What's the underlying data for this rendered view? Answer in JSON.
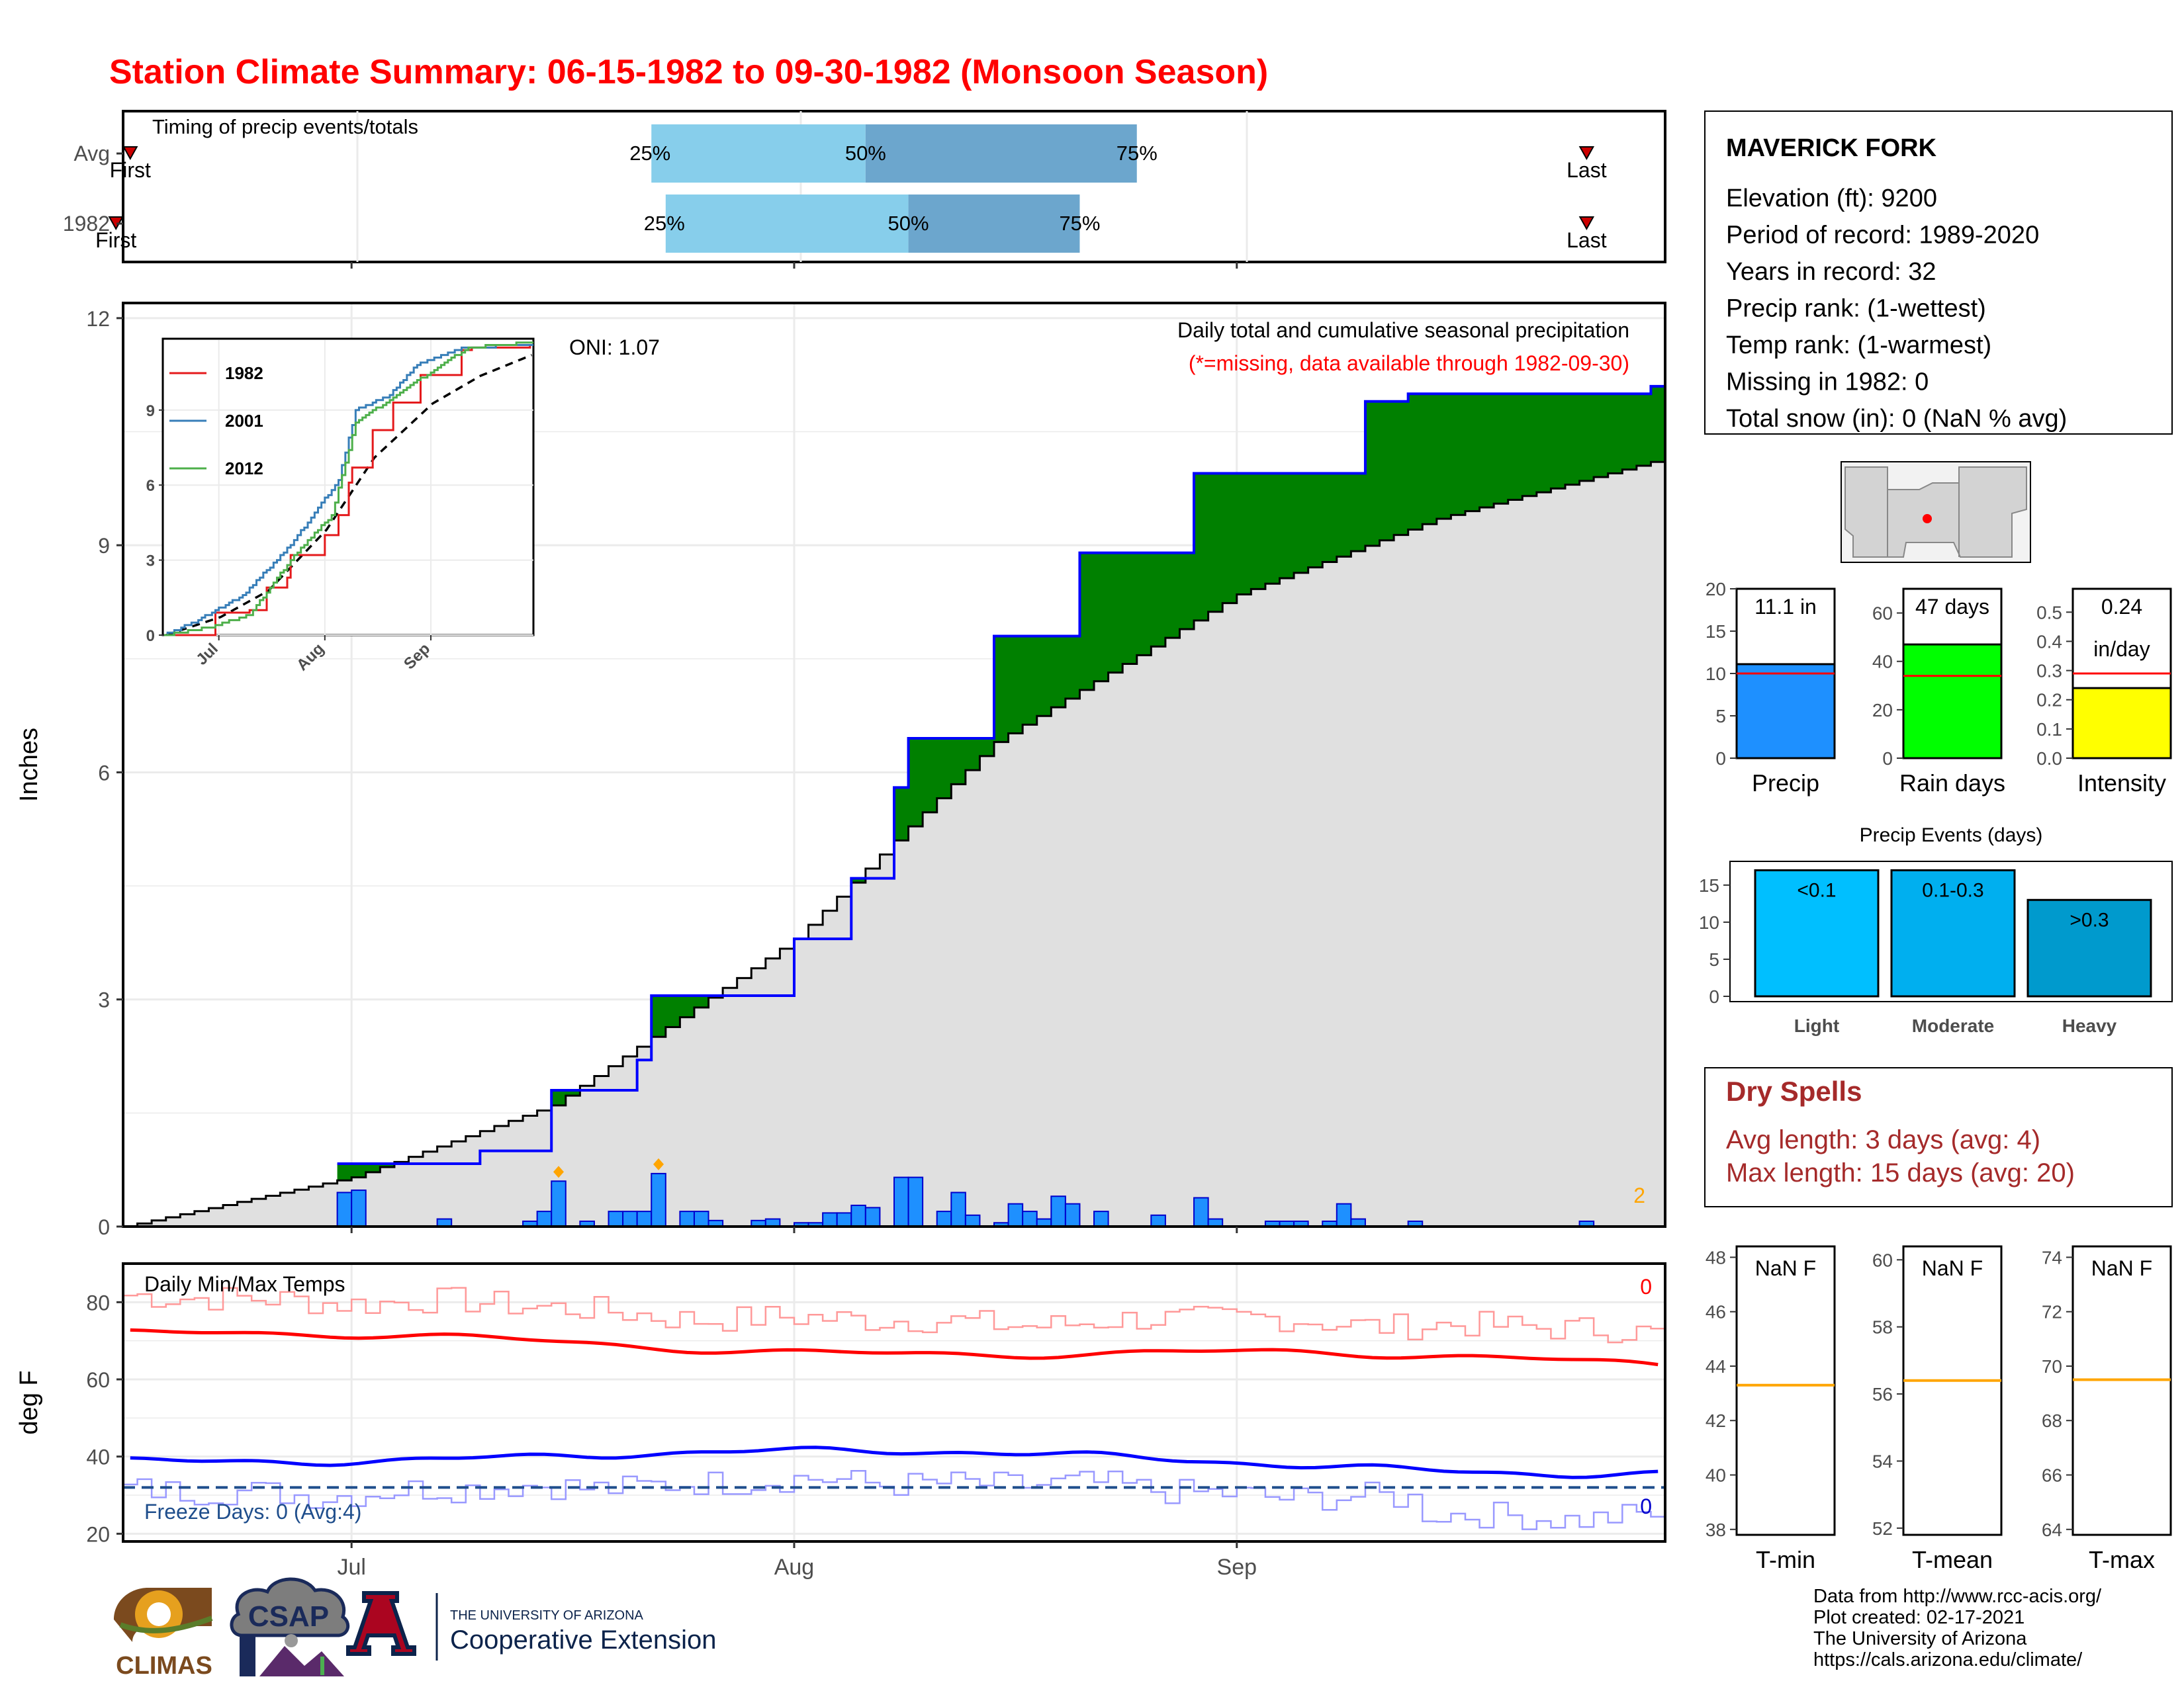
{
  "title": "Station Climate Summary: 06-15-1982 to 09-30-1982 (Monsoon Season)",
  "colors": {
    "title": "#ff0000",
    "above_avg": "#008000",
    "below_avg": "#7f5000",
    "cumulative_line": "#0000ff",
    "avg_fill": "#e0e0e0",
    "daily_bar": "#1e90ff",
    "marker": "#ffa500",
    "tmax": "#ff0000",
    "tmin": "#0000ff",
    "freeze_line": "#1f4e8c",
    "dry_spell_text": "#a52a2a",
    "timing_light": "#87ceeb",
    "timing_dark": "#6ca6cd",
    "precip_bar": "#1e90ff",
    "raindays_bar": "#00ff00",
    "intensity_bar": "#ffff00",
    "light_bar": "#00bfff",
    "moderate_bar": "#00afef",
    "heavy_bar": "#009acd"
  },
  "timing": {
    "label": "Timing of precip events/totals",
    "rows": [
      {
        "name": "Avg",
        "first": "06-15",
        "q25": "07-22",
        "q50": "08-06",
        "q75": "08-25",
        "last": "09-25"
      },
      {
        "name": "1982",
        "first": "06-14",
        "q25": "07-23",
        "q50": "08-09",
        "q75": "08-21",
        "last": "09-25"
      }
    ],
    "first_label": "First",
    "last_label": "Last",
    "p25": "25%",
    "p50": "50%",
    "p75": "75%"
  },
  "precip_panel": {
    "ylabel": "Inches",
    "note1": "Daily total and cumulative seasonal precipitation",
    "note2": "(*=missing, data available through 1982-09-30)",
    "oni": "ONI: 1.07",
    "corner_count": "2",
    "yticks": [
      "0",
      "3",
      "6",
      "9",
      "12"
    ],
    "xticks": [
      "Jul",
      "Aug",
      "Sep"
    ]
  },
  "inset": {
    "series": [
      {
        "name": "1982",
        "color": "#e41a1c"
      },
      {
        "name": "2001",
        "color": "#377eb8"
      },
      {
        "name": "2012",
        "color": "#4daf4a"
      }
    ],
    "yticks": [
      "0",
      "3",
      "6",
      "9"
    ],
    "xticks": [
      "Jul",
      "Aug",
      "Sep"
    ]
  },
  "temp_panel": {
    "ylabel": "deg F",
    "label": "Daily Min/Max Temps",
    "freeze_text": "Freeze Days: 0 (Avg:4)",
    "max_count": "0",
    "min_count": "0",
    "yticks": [
      "20",
      "40",
      "60",
      "80"
    ],
    "freeze_threshold": 32
  },
  "station": {
    "name": "MAVERICK FORK",
    "lines": [
      "Elevation (ft): 9200",
      "Period of record: 1989-2020",
      "Years in record: 32",
      "Precip rank:  (1-wettest)",
      "Temp rank:  (1-warmest)",
      "Missing in 1982: 0",
      "Total snow (in): 0 (NaN % avg)"
    ]
  },
  "summary_bars": [
    {
      "label": "Precip",
      "value_text": "11.1 in",
      "value": 11.1,
      "avg": 10.0,
      "yticks": [
        "0",
        "5",
        "10",
        "15",
        "20"
      ],
      "ymax": 20
    },
    {
      "label": "Rain days",
      "value_text": "47 days",
      "value": 47,
      "avg": 34,
      "yticks": [
        "0",
        "20",
        "40",
        "60"
      ],
      "ymax": 70
    },
    {
      "label": "Intensity",
      "value_text": "0.24",
      "value_text2": "in/day",
      "value": 0.24,
      "avg": 0.29,
      "yticks": [
        "0.0",
        "0.1",
        "0.2",
        "0.3",
        "0.4",
        "0.5"
      ],
      "ymax": 0.58
    }
  ],
  "events": {
    "title": "Precip Events (days)",
    "yticks": [
      "0",
      "5",
      "10",
      "15"
    ],
    "bars": [
      {
        "label": "Light",
        "range": "<0.1",
        "value": 17
      },
      {
        "label": "Moderate",
        "range": "0.1-0.3",
        "value": 17
      },
      {
        "label": "Heavy",
        "range": ">0.3",
        "value": 13
      }
    ]
  },
  "dry_spells": {
    "title": "Dry Spells",
    "avg_line": "Avg length: 3 days (avg: 4)",
    "max_line": "Max length: 15 days (avg: 20)"
  },
  "temp_boxes": [
    {
      "label": "T-min",
      "value": "NaN F",
      "yticks": [
        "38",
        "40",
        "42",
        "44",
        "46",
        "48"
      ],
      "avg_line": 43.3
    },
    {
      "label": "T-mean",
      "value": "NaN F",
      "yticks": [
        "52",
        "54",
        "56",
        "58",
        "60"
      ],
      "avg_line": 56.4
    },
    {
      "label": "T-max",
      "value": "NaN F",
      "yticks": [
        "64",
        "66",
        "68",
        "70",
        "72",
        "74"
      ],
      "avg_line": 69.5
    }
  ],
  "footer": {
    "lines": [
      "Data from http://www.rcc-acis.org/",
      "Plot created: 02-17-2021",
      "The University of Arizona",
      "https://cals.arizona.edu/climate/"
    ],
    "logo1": "CLIMAS",
    "logo2": "CSAP",
    "logo3_top": "THE UNIVERSITY OF ARIZONA",
    "logo3_main": "Cooperative Extension"
  },
  "chart_data": [
    {
      "type": "area",
      "title": "Daily total and cumulative seasonal precipitation",
      "ylabel": "Inches",
      "ylim": [
        0,
        12
      ],
      "x_domain": [
        "1982-06-15",
        "1982-09-30"
      ],
      "cumulative_1982": [
        {
          "x": "1982-06-30",
          "y": 0.83
        },
        {
          "x": "1982-07-10",
          "y": 1.0
        },
        {
          "x": "1982-07-15",
          "y": 1.8
        },
        {
          "x": "1982-07-21",
          "y": 2.2
        },
        {
          "x": "1982-07-22",
          "y": 3.05
        },
        {
          "x": "1982-08-01",
          "y": 3.8
        },
        {
          "x": "1982-08-05",
          "y": 4.6
        },
        {
          "x": "1982-08-08",
          "y": 5.8
        },
        {
          "x": "1982-08-09",
          "y": 6.45
        },
        {
          "x": "1982-08-15",
          "y": 7.8
        },
        {
          "x": "1982-08-21",
          "y": 8.9
        },
        {
          "x": "1982-08-29",
          "y": 9.95
        },
        {
          "x": "1982-09-10",
          "y": 10.9
        },
        {
          "x": "1982-09-13",
          "y": 11.0
        },
        {
          "x": "1982-09-30",
          "y": 11.1
        }
      ],
      "cumulative_avg": [
        {
          "x": "1982-06-15",
          "y": 0.0
        },
        {
          "x": "1982-07-01",
          "y": 0.65
        },
        {
          "x": "1982-07-15",
          "y": 1.6
        },
        {
          "x": "1982-08-01",
          "y": 3.8
        },
        {
          "x": "1982-08-15",
          "y": 6.4
        },
        {
          "x": "1982-09-01",
          "y": 8.35
        },
        {
          "x": "1982-09-15",
          "y": 9.35
        },
        {
          "x": "1982-09-30",
          "y": 10.1
        }
      ],
      "daily_precip": [
        {
          "x": "1982-06-30",
          "y": 0.45
        },
        {
          "x": "1982-07-01",
          "y": 0.48
        },
        {
          "x": "1982-07-07",
          "y": 0.1
        },
        {
          "x": "1982-07-13",
          "y": 0.07
        },
        {
          "x": "1982-07-14",
          "y": 0.2
        },
        {
          "x": "1982-07-15",
          "y": 0.6
        },
        {
          "x": "1982-07-17",
          "y": 0.07
        },
        {
          "x": "1982-07-19",
          "y": 0.2
        },
        {
          "x": "1982-07-20",
          "y": 0.2
        },
        {
          "x": "1982-07-21",
          "y": 0.2
        },
        {
          "x": "1982-07-22",
          "y": 0.7
        },
        {
          "x": "1982-07-24",
          "y": 0.2
        },
        {
          "x": "1982-07-25",
          "y": 0.2
        },
        {
          "x": "1982-07-26",
          "y": 0.08
        },
        {
          "x": "1982-07-29",
          "y": 0.08
        },
        {
          "x": "1982-07-30",
          "y": 0.1
        },
        {
          "x": "1982-08-01",
          "y": 0.05
        },
        {
          "x": "1982-08-02",
          "y": 0.05
        },
        {
          "x": "1982-08-03",
          "y": 0.18
        },
        {
          "x": "1982-08-04",
          "y": 0.18
        },
        {
          "x": "1982-08-05",
          "y": 0.28
        },
        {
          "x": "1982-08-06",
          "y": 0.25
        },
        {
          "x": "1982-08-08",
          "y": 0.65
        },
        {
          "x": "1982-08-09",
          "y": 0.65
        },
        {
          "x": "1982-08-11",
          "y": 0.2
        },
        {
          "x": "1982-08-12",
          "y": 0.45
        },
        {
          "x": "1982-08-13",
          "y": 0.15
        },
        {
          "x": "1982-08-15",
          "y": 0.05
        },
        {
          "x": "1982-08-16",
          "y": 0.3
        },
        {
          "x": "1982-08-17",
          "y": 0.2
        },
        {
          "x": "1982-08-18",
          "y": 0.1
        },
        {
          "x": "1982-08-19",
          "y": 0.4
        },
        {
          "x": "1982-08-20",
          "y": 0.3
        },
        {
          "x": "1982-08-22",
          "y": 0.2
        },
        {
          "x": "1982-08-26",
          "y": 0.15
        },
        {
          "x": "1982-08-29",
          "y": 0.38
        },
        {
          "x": "1982-08-30",
          "y": 0.1
        },
        {
          "x": "1982-09-03",
          "y": 0.07
        },
        {
          "x": "1982-09-04",
          "y": 0.07
        },
        {
          "x": "1982-09-05",
          "y": 0.07
        },
        {
          "x": "1982-09-07",
          "y": 0.07
        },
        {
          "x": "1982-09-08",
          "y": 0.3
        },
        {
          "x": "1982-09-09",
          "y": 0.1
        },
        {
          "x": "1982-09-13",
          "y": 0.07
        },
        {
          "x": "1982-09-25",
          "y": 0.07
        }
      ],
      "above_avg_color": "green",
      "below_avg_color": "brown"
    },
    {
      "type": "line",
      "title": "Daily Min/Max Temps",
      "ylabel": "deg F",
      "ylim": [
        18,
        90
      ],
      "series": [
        {
          "name": "Tmax",
          "values_approx_start_end": [
            70,
            63
          ]
        },
        {
          "name": "Tmin",
          "values_approx_start_end": [
            40,
            37
          ]
        }
      ]
    },
    {
      "type": "bar",
      "title": "Precip Events (days)",
      "categories": [
        "Light",
        "Moderate",
        "Heavy"
      ],
      "values": [
        17,
        17,
        13
      ],
      "ylim": [
        0,
        18
      ]
    }
  ]
}
